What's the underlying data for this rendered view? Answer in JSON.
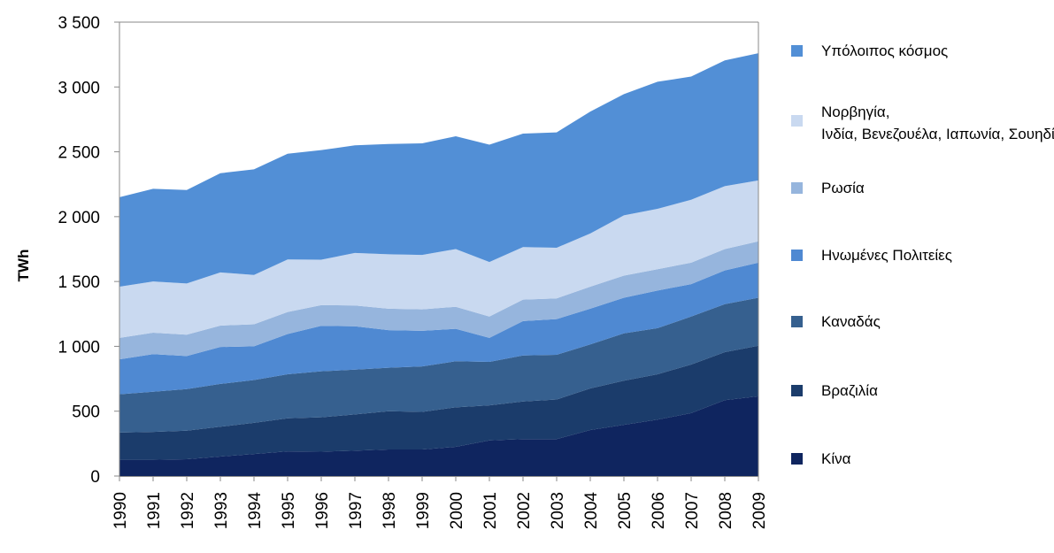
{
  "chart_data": {
    "type": "area",
    "stacked": true,
    "title": "",
    "xlabel": "",
    "ylabel": "TWh",
    "ylim": [
      0,
      3500
    ],
    "grid": false,
    "legend_position": "right",
    "categories": [
      "1990",
      "1991",
      "1992",
      "1993",
      "1994",
      "1995",
      "1996",
      "1997",
      "1998",
      "1999",
      "2000",
      "2001",
      "2002",
      "2003",
      "2004",
      "2005",
      "2006",
      "2007",
      "2008",
      "2009"
    ],
    "y_ticks": [
      {
        "value": 0,
        "label": "0"
      },
      {
        "value": 500,
        "label": "500"
      },
      {
        "value": 1000,
        "label": "1 000"
      },
      {
        "value": 1500,
        "label": "1 500"
      },
      {
        "value": 2000,
        "label": "2 000"
      },
      {
        "value": 2500,
        "label": "2 500"
      },
      {
        "value": 3000,
        "label": "3 000"
      },
      {
        "value": 3500,
        "label": "3 500"
      }
    ],
    "series": [
      {
        "name": "Κίνα",
        "color": "#0f255f",
        "values": [
          125,
          125,
          130,
          150,
          170,
          190,
          188,
          195,
          205,
          205,
          225,
          275,
          285,
          285,
          355,
          395,
          435,
          485,
          585,
          615
        ]
      },
      {
        "name": "Βραζιλία",
        "color": "#1b3c6b",
        "values": [
          210,
          215,
          220,
          230,
          240,
          255,
          265,
          280,
          295,
          290,
          305,
          270,
          290,
          305,
          320,
          340,
          350,
          375,
          370,
          390
        ]
      },
      {
        "name": "Καναδάς",
        "color": "#36608f",
        "values": [
          295,
          310,
          320,
          330,
          330,
          340,
          355,
          345,
          335,
          350,
          355,
          335,
          355,
          345,
          340,
          365,
          355,
          370,
          370,
          370
        ]
      },
      {
        "name": "Ηνωμένες Πολιτείες",
        "color": "#4f89d2",
        "values": [
          270,
          290,
          255,
          285,
          260,
          310,
          350,
          335,
          290,
          275,
          250,
          185,
          265,
          275,
          275,
          275,
          290,
          250,
          260,
          270
        ]
      },
      {
        "name": "Ρωσία",
        "color": "#96b5dd",
        "values": [
          165,
          165,
          165,
          165,
          170,
          170,
          160,
          160,
          165,
          165,
          170,
          165,
          165,
          160,
          170,
          170,
          165,
          165,
          165,
          165
        ]
      },
      {
        "name": "Νορβηγία, Ινδία, Βενεζουέλα, Ιαπωνία, Σουηδία",
        "color": "#c9d9f0",
        "values": [
          395,
          395,
          395,
          410,
          380,
          405,
          350,
          405,
          420,
          420,
          445,
          420,
          405,
          390,
          410,
          465,
          465,
          485,
          485,
          470
        ]
      },
      {
        "name": "Υπόλοιπος κόσμος",
        "color": "#528fd6",
        "values": [
          690,
          715,
          720,
          765,
          815,
          815,
          845,
          830,
          850,
          860,
          870,
          905,
          875,
          890,
          940,
          935,
          980,
          950,
          970,
          980
        ]
      }
    ]
  }
}
